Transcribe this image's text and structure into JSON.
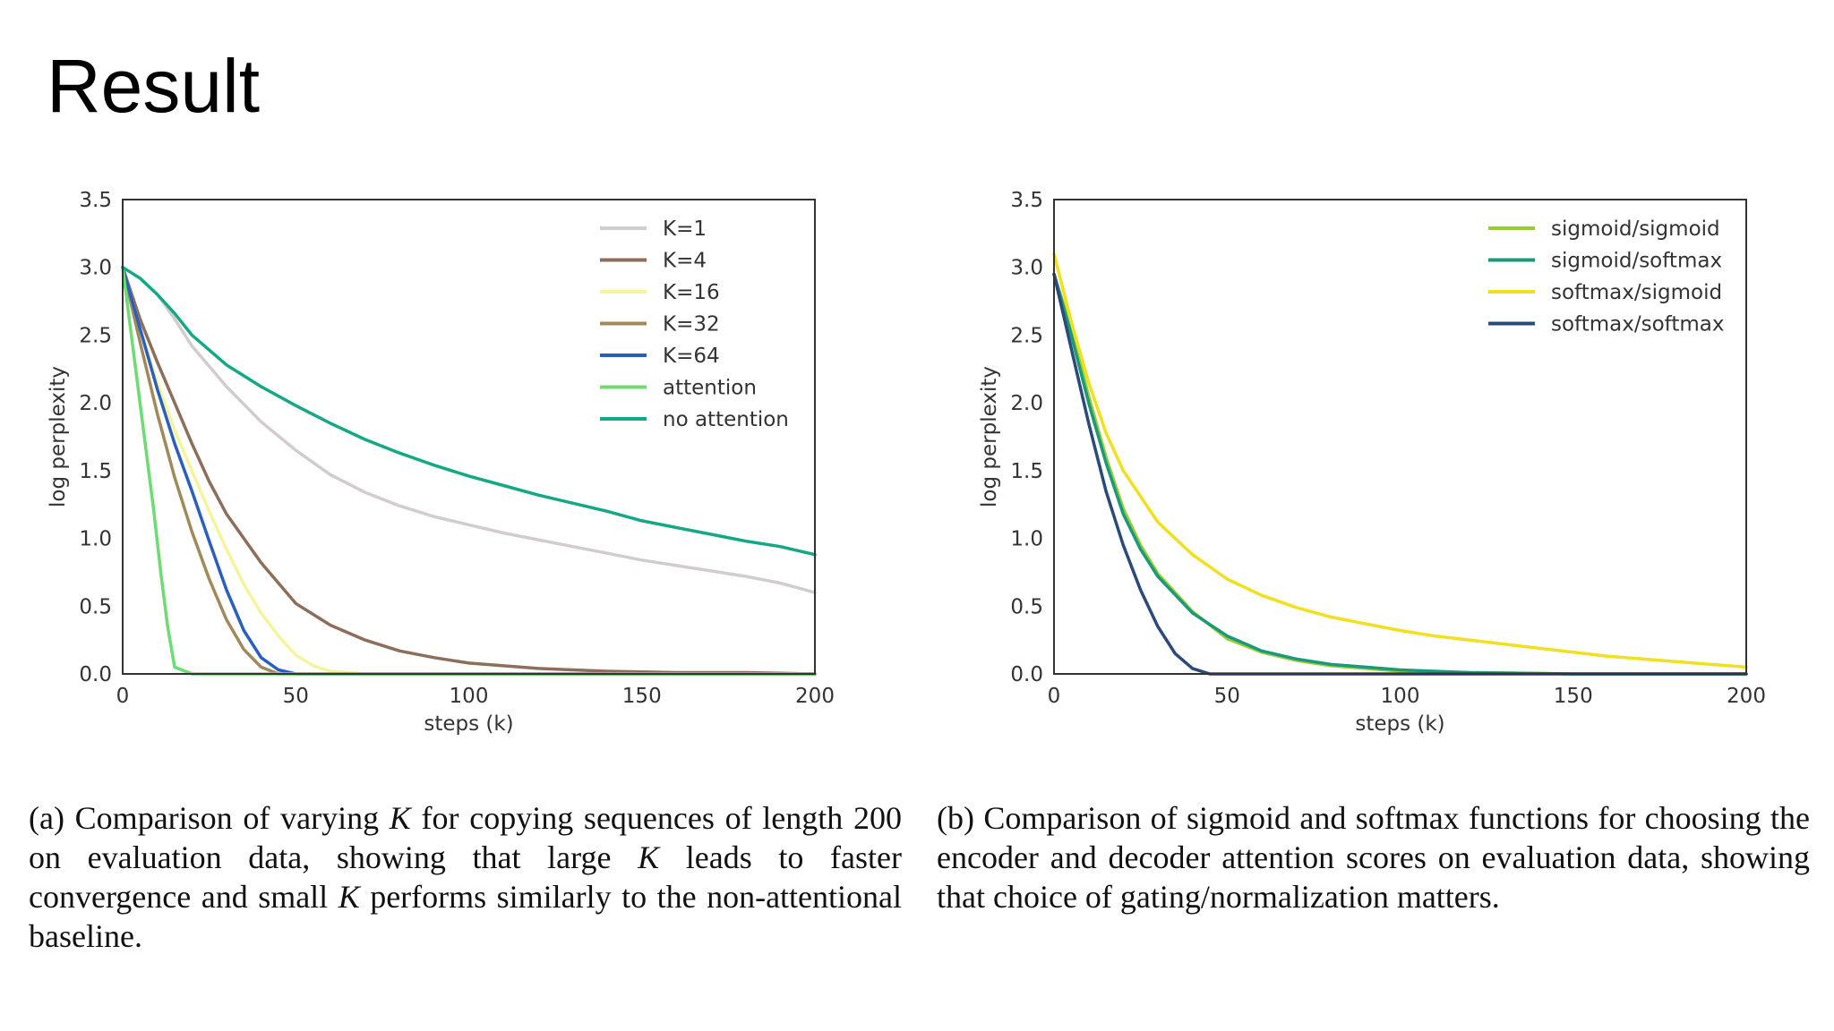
{
  "slide": {
    "title": "Result"
  },
  "captions": {
    "a": {
      "p1": "(a) Comparison of varying ",
      "v1": "K",
      "p2": " for copying sequences of length 200 on evaluation data, showing that large ",
      "v2": "K",
      "p3": " leads to faster convergence and small ",
      "v3": "K",
      "p4": " performs similarly to the non-attentional baseline."
    },
    "b": {
      "text": "(b) Comparison of sigmoid and softmax functions for choosing the encoder and decoder attention scores on evaluation data, showing that choice of gating/normalization matters."
    }
  },
  "chart_data": [
    {
      "type": "line",
      "id": "a",
      "xlabel": "steps (k)",
      "ylabel": "log perplexity",
      "xlim": [
        0,
        200
      ],
      "ylim": [
        0.0,
        3.5
      ],
      "xticks": [
        0,
        50,
        100,
        150,
        200
      ],
      "yticks": [
        0.0,
        0.5,
        1.0,
        1.5,
        2.0,
        2.5,
        3.0,
        3.5
      ],
      "xtick_labels": [
        "0",
        "50",
        "100",
        "150",
        "200"
      ],
      "ytick_labels": [
        "0.0",
        "0.5",
        "1.0",
        "1.5",
        "2.0",
        "2.5",
        "3.0",
        "3.5"
      ],
      "legend_position": "top-right",
      "series": [
        {
          "name": "K=1",
          "color": "#d2cccc",
          "x": [
            0,
            5,
            10,
            15,
            20,
            30,
            40,
            50,
            60,
            70,
            80,
            90,
            100,
            110,
            120,
            130,
            140,
            150,
            160,
            170,
            180,
            190,
            200
          ],
          "y": [
            3.0,
            2.92,
            2.8,
            2.62,
            2.42,
            2.12,
            1.86,
            1.65,
            1.47,
            1.34,
            1.24,
            1.16,
            1.1,
            1.04,
            0.99,
            0.94,
            0.89,
            0.84,
            0.8,
            0.76,
            0.72,
            0.67,
            0.6
          ]
        },
        {
          "name": "K=4",
          "color": "#8c6e5a",
          "x": [
            0,
            5,
            10,
            15,
            20,
            25,
            30,
            40,
            50,
            60,
            70,
            80,
            90,
            100,
            110,
            120,
            130,
            140,
            160,
            180,
            200
          ],
          "y": [
            3.0,
            2.62,
            2.3,
            2.0,
            1.7,
            1.42,
            1.18,
            0.82,
            0.52,
            0.36,
            0.25,
            0.17,
            0.12,
            0.08,
            0.06,
            0.04,
            0.03,
            0.02,
            0.01,
            0.01,
            0.0
          ]
        },
        {
          "name": "K=16",
          "color": "#f4f59a",
          "x": [
            0,
            5,
            10,
            15,
            20,
            25,
            30,
            35,
            40,
            45,
            50,
            55,
            60,
            70,
            80,
            100,
            120,
            150,
            200
          ],
          "y": [
            3.0,
            2.55,
            2.15,
            1.8,
            1.5,
            1.2,
            0.92,
            0.66,
            0.45,
            0.28,
            0.14,
            0.06,
            0.02,
            0.0,
            0.0,
            0.0,
            0.0,
            0.0,
            0.0
          ]
        },
        {
          "name": "K=32",
          "color": "#a08a5a",
          "x": [
            0,
            5,
            10,
            15,
            20,
            25,
            30,
            35,
            40,
            45,
            50,
            55,
            60,
            80,
            100,
            150,
            200
          ],
          "y": [
            3.0,
            2.45,
            1.92,
            1.45,
            1.05,
            0.7,
            0.4,
            0.18,
            0.05,
            0.0,
            0.0,
            0.0,
            0.0,
            0.0,
            0.0,
            0.0,
            0.0
          ]
        },
        {
          "name": "K=64",
          "color": "#2a5fc0",
          "x": [
            0,
            5,
            10,
            15,
            20,
            25,
            30,
            35,
            40,
            45,
            50,
            60,
            80,
            100,
            150,
            200
          ],
          "y": [
            3.0,
            2.55,
            2.1,
            1.7,
            1.35,
            0.98,
            0.62,
            0.32,
            0.12,
            0.03,
            0.0,
            0.0,
            0.0,
            0.0,
            0.0,
            0.0
          ]
        },
        {
          "name": "attention",
          "color": "#6cdd72",
          "x": [
            0,
            3,
            6,
            9,
            11,
            13,
            15,
            20,
            25,
            30,
            40,
            60,
            100,
            150,
            200
          ],
          "y": [
            3.0,
            2.4,
            1.8,
            1.2,
            0.75,
            0.35,
            0.05,
            0.0,
            0.0,
            0.0,
            0.0,
            0.0,
            0.0,
            0.0,
            0.0
          ]
        },
        {
          "name": "no attention",
          "color": "#15a884",
          "x": [
            0,
            5,
            10,
            15,
            20,
            30,
            40,
            50,
            60,
            70,
            80,
            90,
            100,
            110,
            120,
            130,
            140,
            150,
            160,
            170,
            180,
            190,
            200
          ],
          "y": [
            3.0,
            2.92,
            2.8,
            2.66,
            2.5,
            2.28,
            2.12,
            1.98,
            1.85,
            1.73,
            1.63,
            1.54,
            1.46,
            1.39,
            1.32,
            1.26,
            1.2,
            1.13,
            1.08,
            1.03,
            0.98,
            0.94,
            0.88
          ]
        }
      ]
    },
    {
      "type": "line",
      "id": "b",
      "xlabel": "steps (k)",
      "ylabel": "log perplexity",
      "xlim": [
        0,
        200
      ],
      "ylim": [
        0.0,
        3.5
      ],
      "xticks": [
        0,
        50,
        100,
        150,
        200
      ],
      "yticks": [
        0.0,
        0.5,
        1.0,
        1.5,
        2.0,
        2.5,
        3.0,
        3.5
      ],
      "xtick_labels": [
        "0",
        "50",
        "100",
        "150",
        "200"
      ],
      "ytick_labels": [
        "0.0",
        "0.5",
        "1.0",
        "1.5",
        "2.0",
        "2.5",
        "3.0",
        "3.5"
      ],
      "legend_position": "top-right",
      "series": [
        {
          "name": "sigmoid/sigmoid",
          "color": "#9acd32",
          "x": [
            0,
            5,
            10,
            15,
            20,
            25,
            30,
            40,
            50,
            60,
            70,
            80,
            90,
            100,
            120,
            150,
            200
          ],
          "y": [
            2.95,
            2.55,
            2.05,
            1.6,
            1.22,
            0.95,
            0.74,
            0.46,
            0.26,
            0.16,
            0.1,
            0.06,
            0.04,
            0.02,
            0.01,
            0.0,
            0.0
          ]
        },
        {
          "name": "sigmoid/softmax",
          "color": "#1a9a7a",
          "x": [
            0,
            5,
            10,
            15,
            20,
            25,
            30,
            40,
            50,
            60,
            70,
            80,
            90,
            100,
            120,
            150,
            200
          ],
          "y": [
            2.95,
            2.5,
            2.0,
            1.56,
            1.18,
            0.92,
            0.72,
            0.45,
            0.28,
            0.17,
            0.11,
            0.07,
            0.05,
            0.03,
            0.01,
            0.0,
            0.0
          ]
        },
        {
          "name": "softmax/sigmoid",
          "color": "#f0e020",
          "x": [
            0,
            5,
            10,
            15,
            20,
            30,
            40,
            50,
            60,
            70,
            80,
            90,
            100,
            110,
            120,
            130,
            140,
            150,
            160,
            170,
            180,
            190,
            200
          ],
          "y": [
            3.1,
            2.6,
            2.15,
            1.78,
            1.5,
            1.12,
            0.88,
            0.7,
            0.58,
            0.49,
            0.42,
            0.37,
            0.32,
            0.28,
            0.25,
            0.22,
            0.19,
            0.16,
            0.13,
            0.11,
            0.09,
            0.07,
            0.05
          ]
        },
        {
          "name": "softmax/softmax",
          "color": "#2a4a7a",
          "x": [
            0,
            5,
            10,
            15,
            20,
            25,
            30,
            35,
            40,
            45,
            50,
            60,
            80,
            100,
            150,
            200
          ],
          "y": [
            2.95,
            2.4,
            1.85,
            1.35,
            0.95,
            0.62,
            0.35,
            0.15,
            0.04,
            0.0,
            0.0,
            0.0,
            0.0,
            0.0,
            0.0,
            0.0
          ]
        }
      ]
    }
  ]
}
